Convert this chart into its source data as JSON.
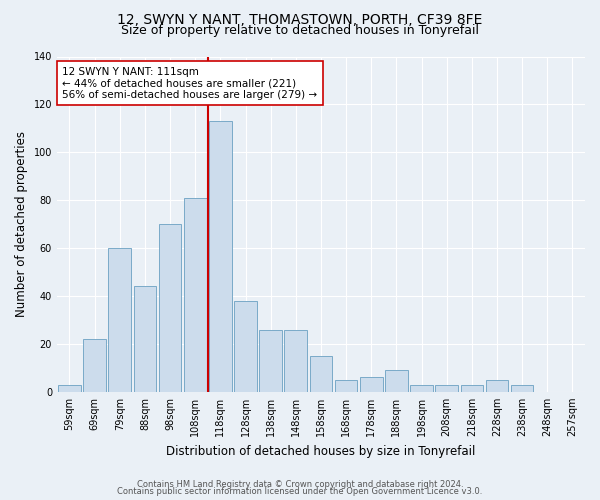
{
  "title1": "12, SWYN Y NANT, THOMASTOWN, PORTH, CF39 8FE",
  "title2": "Size of property relative to detached houses in Tonyrefail",
  "xlabel": "Distribution of detached houses by size in Tonyrefail",
  "ylabel": "Number of detached properties",
  "bar_labels": [
    "59sqm",
    "69sqm",
    "79sqm",
    "88sqm",
    "98sqm",
    "108sqm",
    "118sqm",
    "128sqm",
    "138sqm",
    "148sqm",
    "158sqm",
    "168sqm",
    "178sqm",
    "188sqm",
    "198sqm",
    "208sqm",
    "218sqm",
    "228sqm",
    "238sqm",
    "248sqm",
    "257sqm"
  ],
  "bar_values": [
    3,
    22,
    60,
    44,
    70,
    81,
    113,
    38,
    26,
    26,
    15,
    5,
    6,
    9,
    3,
    3,
    3,
    5,
    3,
    0,
    0
  ],
  "bar_color": "#ccdcec",
  "bar_edge_color": "#7aaac8",
  "vline_x": 5.5,
  "vline_color": "#cc0000",
  "annotation_text": "12 SWYN Y NANT: 111sqm\n← 44% of detached houses are smaller (221)\n56% of semi-detached houses are larger (279) →",
  "ylim": [
    0,
    140
  ],
  "yticks": [
    0,
    20,
    40,
    60,
    80,
    100,
    120,
    140
  ],
  "footnote1": "Contains HM Land Registry data © Crown copyright and database right 2024.",
  "footnote2": "Contains public sector information licensed under the Open Government Licence v3.0.",
  "bg_color": "#eaf0f6",
  "title1_fontsize": 10,
  "title2_fontsize": 9,
  "axis_label_fontsize": 8.5,
  "tick_fontsize": 7,
  "annotation_fontsize": 7.5,
  "footnote_fontsize": 6
}
